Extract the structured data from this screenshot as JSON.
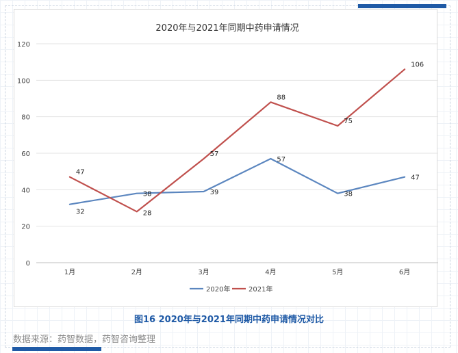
{
  "chart_data": {
    "type": "line",
    "title": "2020年与2021年同期中药申请情况",
    "categories": [
      "1月",
      "2月",
      "3月",
      "4月",
      "5月",
      "6月"
    ],
    "series": [
      {
        "name": "2020年",
        "values": [
          32,
          38,
          39,
          57,
          38,
          47
        ],
        "color": "#5b86bf"
      },
      {
        "name": "2021年",
        "values": [
          47,
          28,
          57,
          88,
          75,
          106
        ],
        "color": "#c0504d"
      }
    ],
    "ylim": [
      0,
      120
    ],
    "yticks": [
      "0",
      "20",
      "40",
      "60",
      "80",
      "100",
      "120"
    ],
    "grid": true,
    "legend": "bottom"
  },
  "caption": "图16 2020年与2021年同期中药申请情况对比",
  "source": "数据来源：药智数据，药智咨询整理",
  "colors": {
    "accent": "#1f5aa6",
    "grid": "#d9d9d9"
  }
}
